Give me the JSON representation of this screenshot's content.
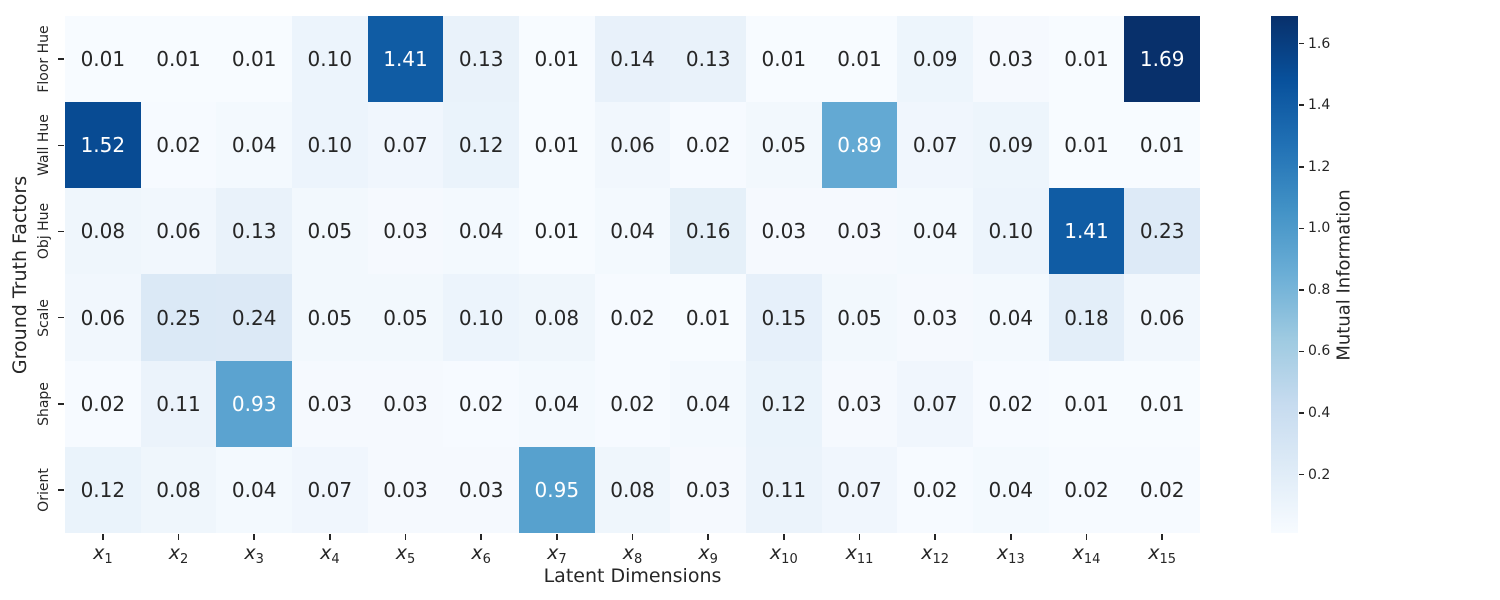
{
  "chart_data": {
    "type": "heatmap",
    "xlabel": "Latent Dimensions",
    "ylabel": "Ground Truth Factors",
    "colorbar_label": "Mutual Information",
    "rows": [
      "Floor Hue",
      "Wall Hue",
      "Obj Hue",
      "Scale",
      "Shape",
      "Orient"
    ],
    "columns": [
      "x_1",
      "x_2",
      "x_3",
      "x_4",
      "x_5",
      "x_6",
      "x_7",
      "x_8",
      "x_9",
      "x_10",
      "x_11",
      "x_12",
      "x_13",
      "x_14",
      "x_15"
    ],
    "values": [
      [
        0.01,
        0.01,
        0.01,
        0.1,
        1.41,
        0.13,
        0.01,
        0.14,
        0.13,
        0.01,
        0.01,
        0.09,
        0.03,
        0.01,
        1.69
      ],
      [
        1.52,
        0.02,
        0.04,
        0.1,
        0.07,
        0.12,
        0.01,
        0.06,
        0.02,
        0.05,
        0.89,
        0.07,
        0.09,
        0.01,
        0.01
      ],
      [
        0.08,
        0.06,
        0.13,
        0.05,
        0.03,
        0.04,
        0.01,
        0.04,
        0.16,
        0.03,
        0.03,
        0.04,
        0.1,
        1.41,
        0.23
      ],
      [
        0.06,
        0.25,
        0.24,
        0.05,
        0.05,
        0.1,
        0.08,
        0.02,
        0.01,
        0.15,
        0.05,
        0.03,
        0.04,
        0.18,
        0.06
      ],
      [
        0.02,
        0.11,
        0.93,
        0.03,
        0.03,
        0.02,
        0.04,
        0.02,
        0.04,
        0.12,
        0.03,
        0.07,
        0.02,
        0.01,
        0.01
      ],
      [
        0.12,
        0.08,
        0.04,
        0.07,
        0.03,
        0.03,
        0.95,
        0.08,
        0.03,
        0.11,
        0.07,
        0.02,
        0.04,
        0.02,
        0.02
      ]
    ],
    "vmin": 0.01,
    "vmax": 1.69,
    "colormap": "Blues",
    "annotation_decimals": 2,
    "colorbar_ticks": [
      0.2,
      0.4,
      0.6,
      0.8,
      1.0,
      1.2,
      1.4,
      1.6
    ],
    "colorbar_position": "right",
    "annotation_text_dark": "#262626",
    "annotation_text_light": "#ffffff",
    "grid": false
  }
}
